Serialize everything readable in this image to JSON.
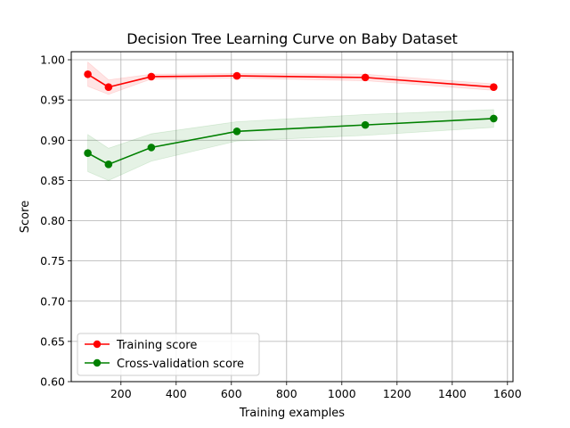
{
  "chart_data": {
    "type": "line",
    "title": "Decision Tree Learning Curve on Baby Dataset",
    "xlabel": "Training examples",
    "ylabel": "Score",
    "xlim": [
      20,
      1620
    ],
    "ylim": [
      0.6,
      1.01
    ],
    "xticks": [
      200,
      400,
      600,
      800,
      1000,
      1200,
      1400,
      1600
    ],
    "yticks": [
      0.6,
      0.65,
      0.7,
      0.75,
      0.8,
      0.85,
      0.9,
      0.95,
      1.0
    ],
    "ytick_labels": [
      "0.60",
      "0.65",
      "0.70",
      "0.75",
      "0.80",
      "0.85",
      "0.90",
      "0.95",
      "1.00"
    ],
    "grid": true,
    "legend_position": "lower-left",
    "x": [
      80,
      155,
      310,
      620,
      1085,
      1550
    ],
    "series": [
      {
        "name": "Training score",
        "color": "#ff0000",
        "band_color": "#ff0000",
        "values": [
          0.982,
          0.966,
          0.979,
          0.98,
          0.978,
          0.966
        ],
        "upper": [
          0.997,
          0.975,
          0.982,
          0.983,
          0.982,
          0.97
        ],
        "lower": [
          0.967,
          0.957,
          0.976,
          0.977,
          0.974,
          0.962
        ]
      },
      {
        "name": "Cross-validation score",
        "color": "#008000",
        "band_color": "#008000",
        "values": [
          0.884,
          0.87,
          0.891,
          0.911,
          0.919,
          0.927
        ],
        "upper": [
          0.907,
          0.89,
          0.908,
          0.923,
          0.932,
          0.938
        ],
        "lower": [
          0.861,
          0.85,
          0.874,
          0.899,
          0.906,
          0.916
        ]
      }
    ]
  }
}
